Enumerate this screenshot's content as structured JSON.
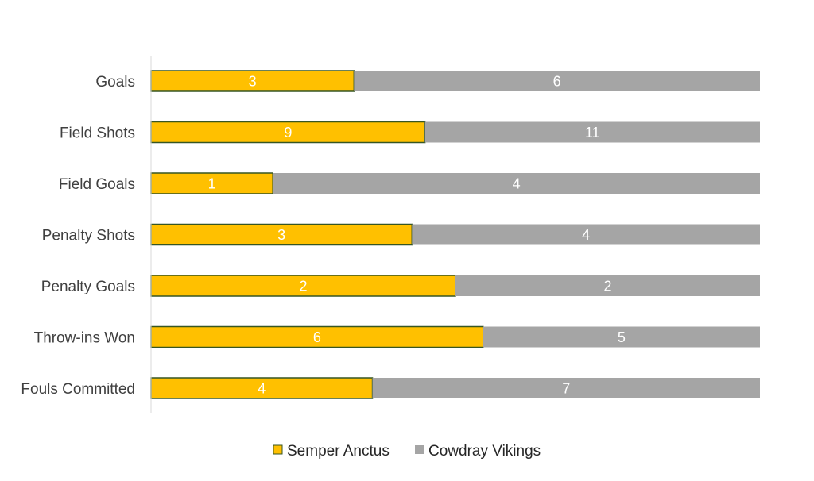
{
  "chart_data": {
    "type": "bar",
    "orientation": "horizontal",
    "stacking": "percent",
    "categories": [
      "Goals",
      "Field Shots",
      "Field Goals",
      "Penalty Shots",
      "Penalty Goals",
      "Throw-ins Won",
      "Fouls Committed"
    ],
    "series": [
      {
        "name": "Semper Anctus",
        "values": [
          3,
          9,
          1,
          3,
          2,
          6,
          4
        ],
        "color": "#FFC000",
        "border_color": "#375623"
      },
      {
        "name": "Cowdray Vikings",
        "values": [
          6,
          11,
          4,
          4,
          2,
          5,
          7
        ],
        "color": "#A5A5A5"
      }
    ],
    "title": "",
    "xlabel": "",
    "ylabel": "",
    "xlim": [
      0,
      100
    ],
    "grid": false,
    "data_labels": true,
    "legend_position": "bottom",
    "label_color": "#FFFFFF"
  }
}
